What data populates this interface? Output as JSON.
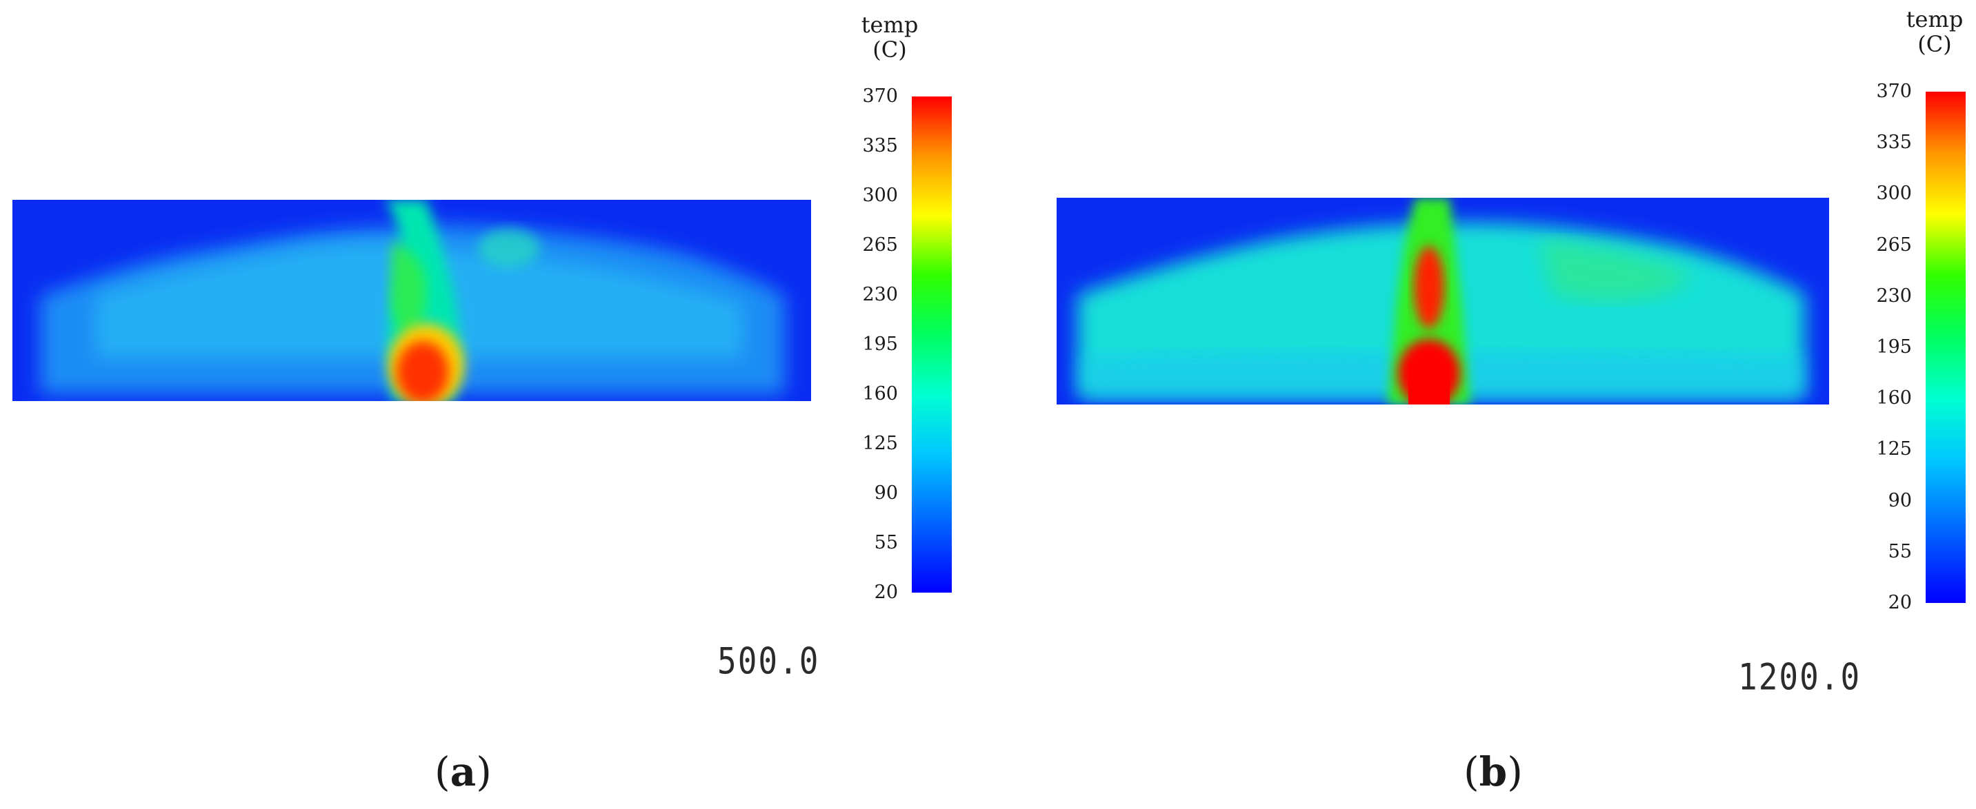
{
  "panels": [
    {
      "id": "a",
      "caption_letter": "a",
      "time_label": "500.0",
      "colorbar": {
        "title_line1": "temp",
        "title_line2": "(C)",
        "ticks": [
          "370",
          "335",
          "300",
          "265",
          "230",
          "195",
          "160",
          "125",
          "90",
          "55",
          "20"
        ]
      }
    },
    {
      "id": "b",
      "caption_letter": "b",
      "time_label": "1200.0",
      "colorbar": {
        "title_line1": "temp",
        "title_line2": "(C)",
        "ticks": [
          "370",
          "335",
          "300",
          "265",
          "230",
          "195",
          "160",
          "125",
          "90",
          "55",
          "20"
        ]
      }
    }
  ],
  "colormap": {
    "min": 20,
    "max": 370,
    "stops": [
      "#0000ff",
      "#0064ff",
      "#00c8ff",
      "#00ffd0",
      "#00ff60",
      "#30ff00",
      "#ffff00",
      "#ff9600",
      "#ff0000"
    ]
  }
}
